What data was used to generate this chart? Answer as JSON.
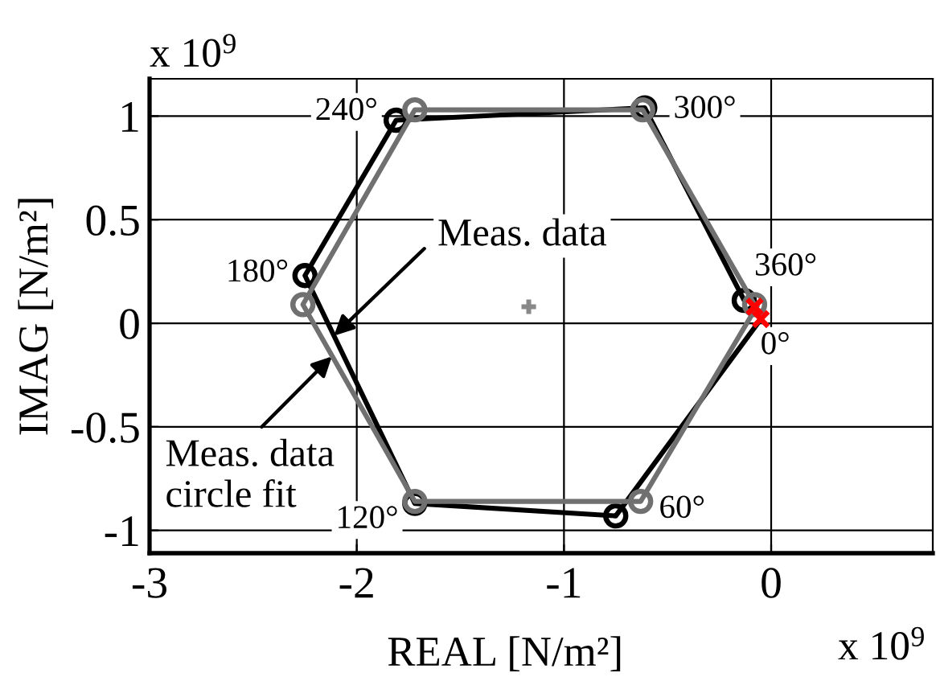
{
  "chart_data": {
    "type": "line",
    "xlabel": "REAL [N/m²]",
    "ylabel": "IMAG [N/m²]",
    "xlim": [
      -3,
      0.78
    ],
    "ylim": [
      -1.11,
      1.18
    ],
    "xticks": [
      -3,
      -2,
      -1,
      0
    ],
    "yticks": [
      -1,
      -0.5,
      0,
      0.5,
      1
    ],
    "grid": true,
    "series": [
      {
        "color": "#000000",
        "marker": "circle",
        "line_style": "solid",
        "x": [
          -0.05,
          -0.75,
          -1.72,
          -2.25,
          -1.81,
          -0.61,
          -0.13
        ],
        "values": [
          0.02,
          -0.93,
          -0.87,
          0.23,
          0.98,
          1.04,
          0.11
        ]
      },
      {
        "color": "#707070",
        "marker": "circle",
        "line_style": "solid",
        "x": [
          -0.07,
          -0.63,
          -1.72,
          -2.26,
          -1.72,
          -0.62,
          -0.08
        ],
        "values": [
          0.08,
          -0.86,
          -0.86,
          0.09,
          1.03,
          1.03,
          0.09
        ]
      },
      {
        "type": "scatter",
        "color": "#ff0000",
        "marker": "cross",
        "x": [
          -0.08,
          -0.05
        ],
        "values": [
          0.08,
          0.02
        ]
      },
      {
        "type": "scatter",
        "color": "#888888",
        "x": [
          -1.17
        ],
        "values": [
          0.08
        ]
      }
    ],
    "annotations": [
      "x 10$^{9}$",
      {
        "text": "240°",
        "x": -2.05,
        "y": 1.02
      },
      {
        "text": "300°",
        "x": -0.32,
        "y": 1.03
      },
      {
        "text": "180°",
        "x": -2.48,
        "y": 0.24
      },
      {
        "text": "360°",
        "x": 0.07,
        "y": 0.27
      },
      {
        "text": "0°",
        "x": 0.02,
        "y": -0.11
      },
      {
        "text": "120°",
        "x": -1.95,
        "y": -0.95
      },
      {
        "text": "60°",
        "x": -0.43,
        "y": -0.9
      },
      {
        "text": "Meas. data",
        "x": -2.11,
        "y": -0.06
      },
      {
        "text": "Meas. data\ncircle fit",
        "x": -2.12,
        "y": -0.16
      },
      "x 10$^{9}$"
    ]
  }
}
